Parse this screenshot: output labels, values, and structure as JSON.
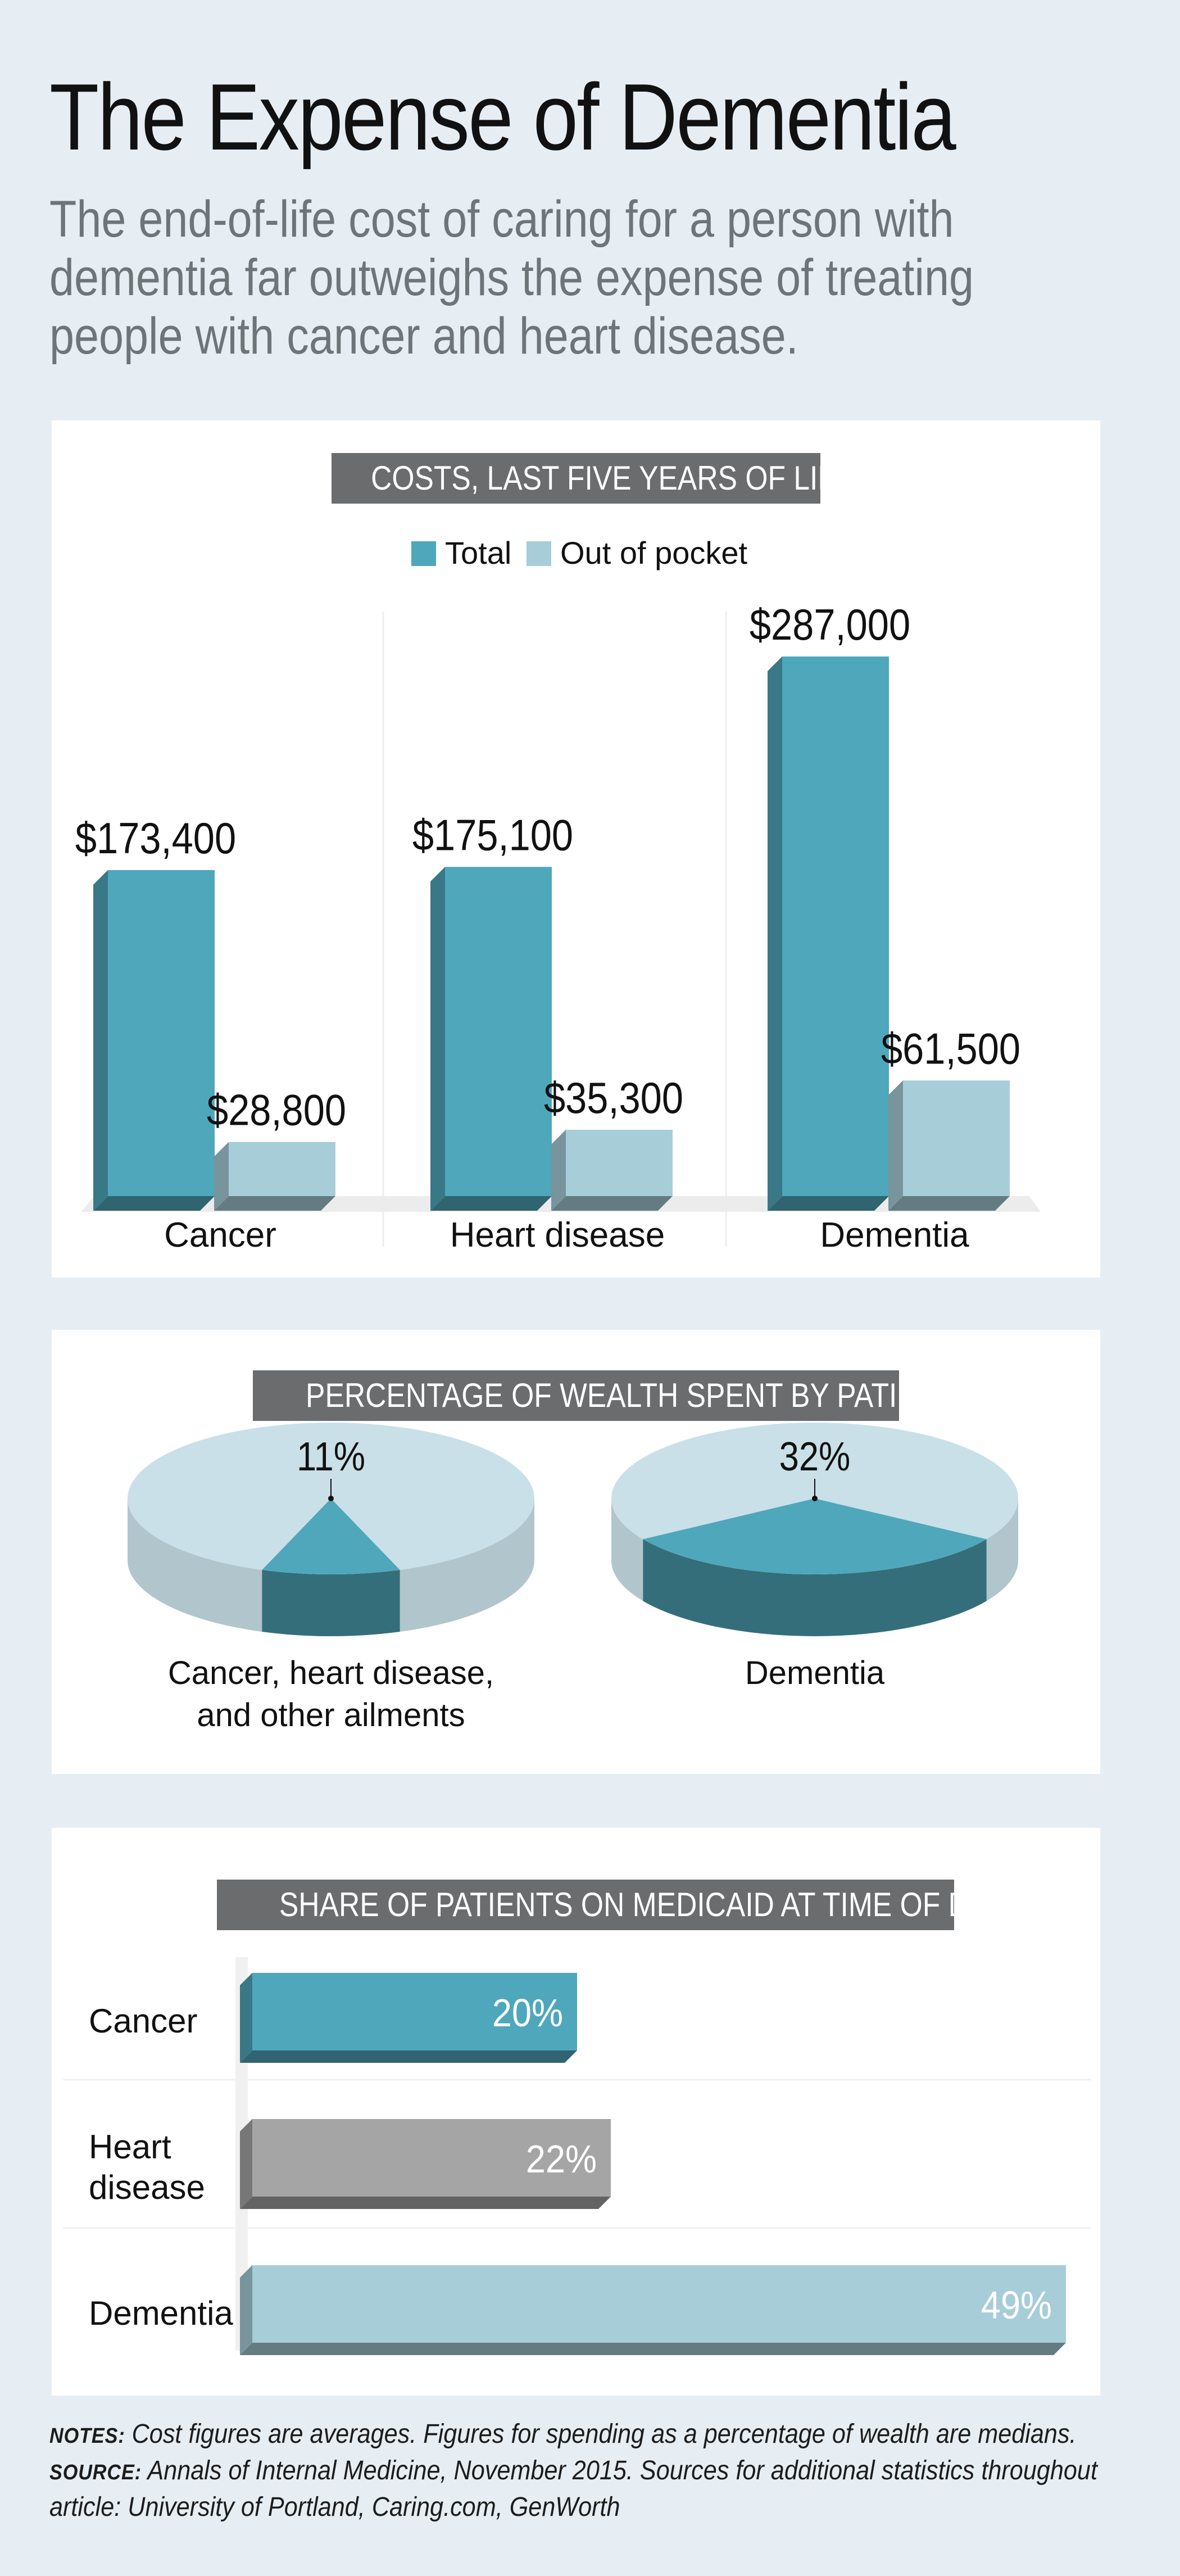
{
  "header": {
    "title": "The Expense of Dementia",
    "subtitle": "The end-of-life cost of caring for a person with dementia far outweighs the expense of treating people with cancer and heart disease."
  },
  "colors": {
    "total": "#4fa7bb",
    "out_of_pocket": "#a7cdd9",
    "pie_light": "#c9e0e8",
    "medicaid_heart": "#a5a5a6"
  },
  "chart_data": [
    {
      "type": "bar",
      "title": "COSTS, LAST FIVE YEARS OF LIFE",
      "categories": [
        "Cancer",
        "Heart disease",
        "Dementia"
      ],
      "series": [
        {
          "name": "Total",
          "values": [
            173400,
            175100,
            287000
          ],
          "labels": [
            "$173,400",
            "$175,100",
            "$287,000"
          ]
        },
        {
          "name": "Out of pocket",
          "values": [
            28800,
            35300,
            61500
          ],
          "labels": [
            "$28,800",
            "$35,300",
            "$61,500"
          ]
        }
      ],
      "legend": "top-center",
      "grid": false
    },
    {
      "type": "pie",
      "title": "PERCENTAGE OF WEALTH SPENT BY PATIENT",
      "charts": [
        {
          "label": "Cancer, heart disease,",
          "label2": "and other ailments",
          "value": 11,
          "value_label": "11%"
        },
        {
          "label": "Dementia",
          "label2": "",
          "value": 32,
          "value_label": "32%"
        }
      ]
    },
    {
      "type": "bar",
      "orientation": "horizontal",
      "title": "SHARE OF PATIENTS ON MEDICAID AT TIME OF DEATH",
      "categories": [
        "Cancer",
        "Heart disease",
        "Dementia"
      ],
      "category_lines": [
        [
          "Cancer"
        ],
        [
          "Heart",
          "disease"
        ],
        [
          "Dementia"
        ]
      ],
      "values": [
        20,
        22,
        49
      ],
      "labels": [
        "20%",
        "22%",
        "49%"
      ],
      "colors": [
        "#4fa7bb",
        "#a5a5a6",
        "#a7cdd9"
      ]
    }
  ],
  "notes": {
    "notes_label": "NOTES:",
    "notes_text": " Cost figures are averages. Figures for spending as a percentage of wealth are medians. ",
    "source_label": "SOURCE:",
    "source_text": " Annals of Internal Medicine, November 2015. Sources for additional statistics throughout article: University of Portland, Caring.com, GenWorth"
  }
}
